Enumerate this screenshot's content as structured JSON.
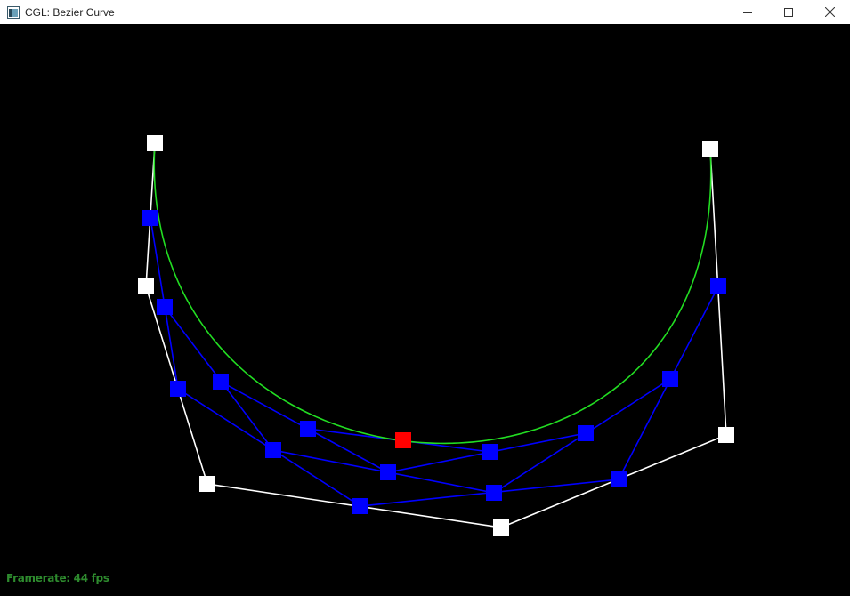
{
  "window": {
    "title": "CGL: Bezier Curve",
    "controls": {
      "minimize_icon": "minimize-icon",
      "maximize_icon": "maximize-icon",
      "close_icon": "close-icon"
    }
  },
  "status": {
    "framerate_text": "Framerate: 44 fps"
  },
  "colors": {
    "curve": "#22dd22",
    "control_polygon": "#ffffff",
    "intermediate": "#0000ff",
    "final_point": "#ff0000",
    "background": "#000000",
    "framerate": "#2e8b2e"
  }
}
